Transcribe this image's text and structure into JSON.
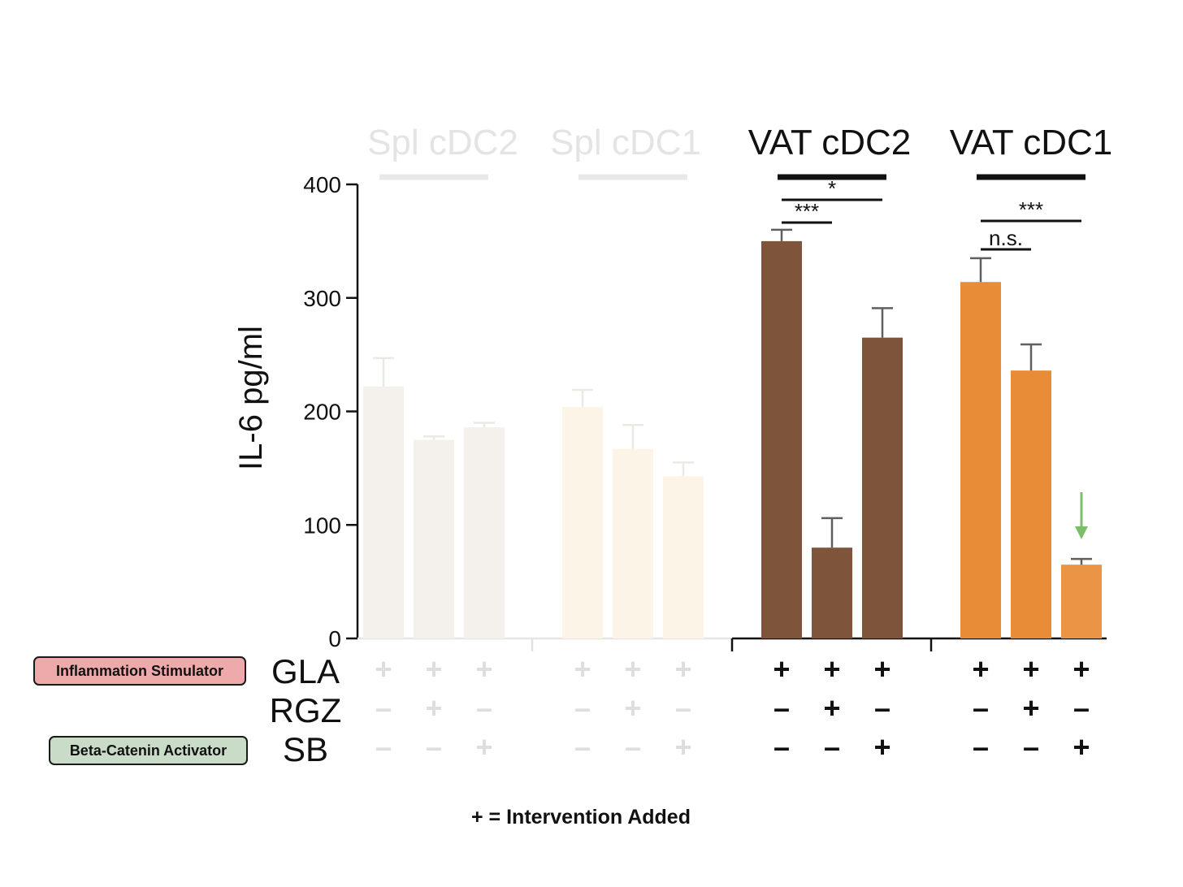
{
  "chart_data": {
    "type": "bar",
    "ylabel": "IL-6 pg/ml",
    "ylim": [
      0,
      400
    ],
    "yticks": [
      0,
      100,
      200,
      300,
      400
    ],
    "groups": [
      {
        "name": "Spl cDC2",
        "faded": true,
        "color": "#f4f1ed",
        "bar_label": "",
        "values": [
          222,
          175,
          186
        ],
        "errors": [
          25,
          3,
          4
        ],
        "significance": []
      },
      {
        "name": "Spl cDC1",
        "faded": true,
        "color": "#fdf4e8",
        "bar_label": "",
        "values": [
          204,
          167,
          143
        ],
        "errors": [
          15,
          21,
          12
        ],
        "significance": []
      },
      {
        "name": "VAT cDC2",
        "faded": false,
        "color": "#7e553a",
        "bar_label": "",
        "values": [
          350,
          80,
          265
        ],
        "errors": [
          10,
          26,
          26
        ],
        "significance": [
          {
            "from": 0,
            "to": 2,
            "label": "*"
          },
          {
            "from": 0,
            "to": 1,
            "label": "***"
          }
        ]
      },
      {
        "name": "VAT cDC1",
        "faded": false,
        "color": "#e98c37",
        "bar_label": "",
        "values": [
          314,
          236,
          65
        ],
        "errors": [
          21,
          23,
          5
        ],
        "significance": [
          {
            "from": 0,
            "to": 2,
            "label": "***"
          },
          {
            "from": 0,
            "to": 1,
            "label": "n.s."
          }
        ]
      }
    ],
    "conditions": [
      {
        "name": "GLA",
        "marks": [
          "+",
          "+",
          "+"
        ]
      },
      {
        "name": "RGZ",
        "marks": [
          "-",
          "+",
          "-"
        ]
      },
      {
        "name": "SB",
        "marks": [
          "-",
          "-",
          "+"
        ]
      }
    ],
    "arrow_color": "#7cbf6a"
  },
  "legend": {
    "stimulator": {
      "label": "Inflammation Stimulator",
      "color": "#eeaaaa"
    },
    "activator": {
      "label": "Beta-Catenin Activator",
      "color": "#c9dcc8"
    }
  },
  "footnote": "+ = Intervention Added"
}
